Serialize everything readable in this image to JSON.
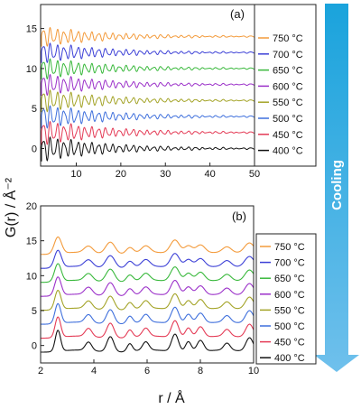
{
  "figure": {
    "ylabel": "G(r) / Å⁻²",
    "xlabel": "r / Å",
    "arrow_label": "Cooling",
    "arrow_colors": {
      "top": "#1aa3dc",
      "bottom": "#6fc0ec"
    }
  },
  "chart_data": [
    {
      "panel": "(a)",
      "type": "line",
      "xlim": [
        2,
        50
      ],
      "ylim": [
        -2.2,
        18
      ],
      "xticks": [
        10,
        20,
        30,
        40,
        50
      ],
      "yticks": [
        0,
        5,
        10,
        15
      ],
      "x_range_plotted": [
        1.6,
        50
      ],
      "series": [
        {
          "name": "750 °C",
          "color": "#f39a3a",
          "offset": 14.0
        },
        {
          "name": "700 °C",
          "color": "#3b3fd6",
          "offset": 12.0
        },
        {
          "name": "650 °C",
          "color": "#38b83b",
          "offset": 10.0
        },
        {
          "name": "600 °C",
          "color": "#9b30c9",
          "offset": 8.0
        },
        {
          "name": "550 °C",
          "color": "#a3a326",
          "offset": 6.0
        },
        {
          "name": "500 °C",
          "color": "#3e6fdc",
          "offset": 4.0
        },
        {
          "name": "450 °C",
          "color": "#e43a55",
          "offset": 2.0
        },
        {
          "name": "400 °C",
          "color": "#111111",
          "offset": 0.0
        }
      ]
    },
    {
      "panel": "(b)",
      "type": "line",
      "xlim": [
        2,
        10
      ],
      "ylim": [
        -2.5,
        20
      ],
      "xticks": [
        2,
        4,
        6,
        8,
        10
      ],
      "yticks": [
        0,
        5,
        10,
        15,
        20
      ],
      "peaks_r": [
        2.65,
        3.8,
        4.62,
        5.35,
        5.95,
        7.05,
        7.55,
        8.0,
        9.0,
        9.85
      ],
      "series": [
        {
          "name": "750 °C",
          "color": "#f39a3a",
          "offset": 14.0
        },
        {
          "name": "700 °C",
          "color": "#3b3fd6",
          "offset": 12.0
        },
        {
          "name": "650 °C",
          "color": "#38b83b",
          "offset": 10.0
        },
        {
          "name": "600 °C",
          "color": "#9b30c9",
          "offset": 8.0
        },
        {
          "name": "550 °C",
          "color": "#a3a326",
          "offset": 6.0
        },
        {
          "name": "500 °C",
          "color": "#3e6fdc",
          "offset": 4.0
        },
        {
          "name": "450 °C",
          "color": "#e43a55",
          "offset": 2.0
        },
        {
          "name": "400 °C",
          "color": "#111111",
          "offset": 0.0
        }
      ]
    }
  ]
}
